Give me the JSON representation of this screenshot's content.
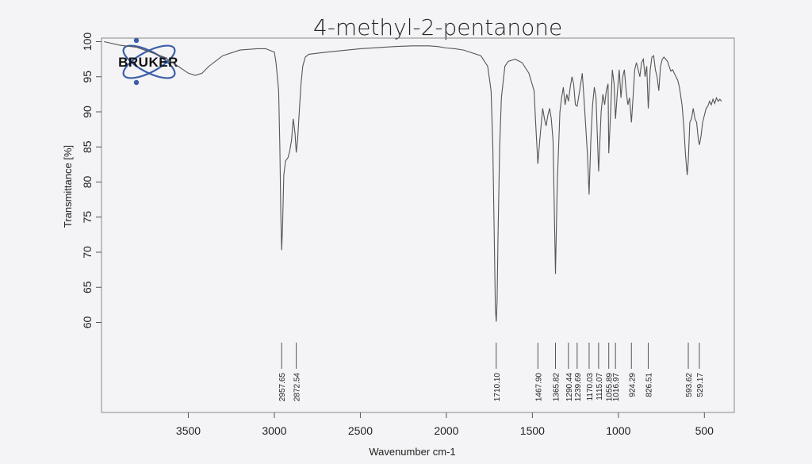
{
  "page": {
    "title": "4-methyl-2-pentanone",
    "logo_text": "BRUKER"
  },
  "colors": {
    "background": "#f4f4f6",
    "frame": "#8a8a8a",
    "spectrum": "#555555",
    "text": "#222222",
    "logo_blue": "#3a5fa8"
  },
  "chart_data": {
    "type": "line",
    "xlabel": "Wavenumber cm-1",
    "ylabel": "Transmittance [%]",
    "x_axis_reversed": true,
    "xlim": [
      4000,
      400
    ],
    "x_ticks": [
      3500,
      3000,
      2500,
      2000,
      1500,
      1000,
      500
    ],
    "y_ticks": [
      60,
      65,
      70,
      75,
      80,
      85,
      90,
      95,
      100
    ],
    "grid": false,
    "series": [
      {
        "x": [
          3990,
          3900,
          3800,
          3720,
          3640,
          3560,
          3500,
          3460,
          3420,
          3380,
          3300,
          3200,
          3100,
          3050,
          3000,
          2990,
          2975,
          2968,
          2962,
          2957.65,
          2952,
          2945,
          2935,
          2920,
          2910,
          2900,
          2890,
          2880,
          2872.54,
          2865,
          2855,
          2845,
          2835,
          2820,
          2800,
          2700,
          2500,
          2300,
          2200,
          2100,
          2050,
          2000,
          1950,
          1900,
          1800,
          1760,
          1740,
          1730,
          1720,
          1715,
          1710.1,
          1705,
          1700,
          1690,
          1680,
          1660,
          1640,
          1600,
          1560,
          1520,
          1490,
          1480,
          1467.9,
          1455,
          1440,
          1430,
          1420,
          1410,
          1400,
          1390,
          1380,
          1365.82,
          1355,
          1340,
          1330,
          1320,
          1310,
          1300,
          1290.44,
          1280,
          1270,
          1260,
          1250,
          1239.69,
          1225,
          1210,
          1200,
          1190,
          1180,
          1170.03,
          1160,
          1150,
          1140,
          1130,
          1115.07,
          1100,
          1090,
          1080,
          1070,
          1060,
          1055.89,
          1045,
          1035,
          1025,
          1016.97,
          1005,
          995,
          985,
          975,
          965,
          955,
          945,
          935,
          924.29,
          915,
          905,
          895,
          885,
          875,
          865,
          855,
          845,
          835,
          826.51,
          815,
          805,
          795,
          785,
          775,
          765,
          755,
          745,
          735,
          725,
          715,
          705,
          695,
          685,
          675,
          665,
          655,
          645,
          630,
          620,
          610,
          600,
          593.62,
          585,
          575,
          565,
          555,
          545,
          535,
          529.17,
          520,
          510,
          500,
          490,
          480,
          470,
          460,
          450,
          440,
          430,
          420,
          410,
          400
        ],
        "y": [
          100,
          99.5,
          99.2,
          98.5,
          97.8,
          96.5,
          95.5,
          95.2,
          95.5,
          96.5,
          98,
          98.8,
          99,
          99,
          98.5,
          97,
          93,
          85,
          75,
          70.3,
          74,
          81,
          83,
          83.5,
          84.5,
          86,
          89,
          87,
          84.2,
          86,
          90,
          94,
          96.5,
          97.8,
          98.2,
          98.5,
          99,
          99.3,
          99.4,
          99.4,
          99.3,
          99.1,
          99,
          98.8,
          98,
          96.5,
          93,
          85,
          70,
          62,
          60.1,
          63,
          72,
          85,
          92,
          96.5,
          97.2,
          97.5,
          97,
          95.5,
          93,
          88,
          82.6,
          86.5,
          90.5,
          89,
          88,
          89.5,
          90.5,
          89,
          86,
          66.9,
          80,
          90,
          92,
          93.5,
          91,
          92.5,
          91.5,
          93.5,
          95,
          94,
          91,
          90.8,
          93,
          95.5,
          92,
          88,
          84,
          78.2,
          86,
          91,
          93.5,
          92,
          81.5,
          90,
          92.5,
          91,
          93,
          94,
          84.1,
          90,
          96,
          94,
          89,
          93,
          96,
          92,
          95,
          96,
          93,
          91,
          92,
          88.5,
          92,
          96,
          97,
          96,
          95,
          97,
          97.5,
          95,
          96.5,
          90.5,
          96,
          97.8,
          98,
          96,
          95,
          93,
          96.5,
          97.5,
          97.8,
          97.5,
          97.2,
          96.5,
          95.8,
          96,
          95.5,
          95,
          94.5,
          93.5,
          91,
          88,
          84,
          81,
          83,
          88.5,
          89,
          90.5,
          89,
          88.5,
          86,
          85.3,
          86.5,
          88.5,
          89.5,
          90.5,
          90.8,
          91.5,
          91,
          91.8,
          91.2,
          92,
          91.5,
          91.8,
          91.5
        ]
      }
    ],
    "peak_labels": [
      "2957.65",
      "2872.54",
      "1710.10",
      "1467.90",
      "1365.82",
      "1290.44",
      "1239.69",
      "1170.03",
      "1115.07",
      "1055.89",
      "1016.97",
      "924.29",
      "826.51",
      "593.62",
      "529.17"
    ]
  }
}
